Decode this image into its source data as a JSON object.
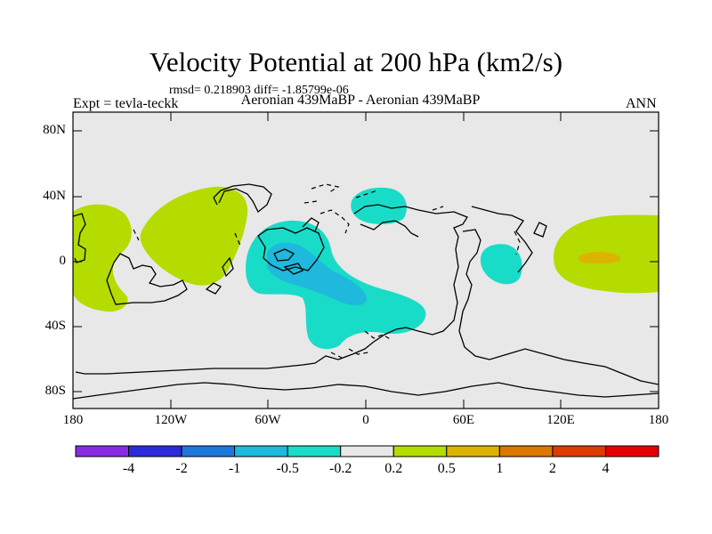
{
  "title": "Velocity Potential at 200 hPa (km2/s)",
  "stats_line": "rmsd= 0.218903 diff= -1.85799e-06",
  "left_label": "Expt = tevla-teckk",
  "center_label": "Aeronian 439MaBP - Aeronian 439MaBP",
  "right_label": "ANN",
  "map": {
    "lat_ticks": [
      "80N",
      "40N",
      "0",
      "40S",
      "80S"
    ],
    "lon_ticks": [
      "180",
      "120W",
      "60W",
      "0",
      "60E",
      "120E",
      "180"
    ]
  },
  "colorbar": {
    "levels": [
      "-4",
      "-2",
      "-1",
      "-0.5",
      "-0.2",
      "0.2",
      "0.5",
      "1",
      "2",
      "4"
    ],
    "colors": [
      "#8a2be2",
      "#2b2bdc",
      "#1e78dc",
      "#1eb9dc",
      "#19dcc8",
      "#e8e8e8",
      "#b4dc00",
      "#dcb400",
      "#dc7800",
      "#dc3c00",
      "#e60000"
    ]
  }
}
